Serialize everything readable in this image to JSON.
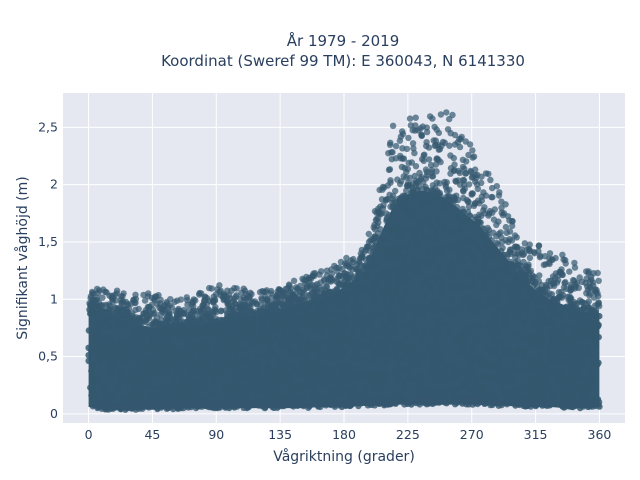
{
  "chart_data": {
    "type": "scatter",
    "title_line1": "År 1979 - 2019",
    "title_line2": "Koordinat (Sweref 99 TM): E 360043, N 6141330",
    "xlabel": "Vågriktning (grader)",
    "ylabel": "Signifikant våghöjd (m)",
    "xlim": [
      -18,
      378
    ],
    "ylim": [
      -0.08,
      2.8
    ],
    "xticks": [
      0,
      45,
      90,
      135,
      180,
      225,
      270,
      315,
      360
    ],
    "xtick_labels": [
      "0",
      "45",
      "90",
      "135",
      "180",
      "225",
      "270",
      "315",
      "360"
    ],
    "yticks": [
      0,
      0.5,
      1,
      1.5,
      2,
      2.5
    ],
    "ytick_labels": [
      "0",
      "0,5",
      "1",
      "1,5",
      "2",
      "2,5"
    ],
    "grid": true,
    "marker_color": "#34586f",
    "plot_background": "#e5e8f0",
    "envelope": {
      "x": [
        0,
        10,
        20,
        30,
        45,
        60,
        75,
        90,
        105,
        120,
        135,
        150,
        165,
        180,
        195,
        205,
        215,
        225,
        235,
        245,
        255,
        265,
        275,
        285,
        295,
        305,
        315,
        325,
        335,
        345,
        355,
        360
      ],
      "lower": [
        0.06,
        0.04,
        0.03,
        0.03,
        0.04,
        0.04,
        0.05,
        0.05,
        0.05,
        0.05,
        0.05,
        0.05,
        0.06,
        0.06,
        0.07,
        0.07,
        0.08,
        0.08,
        0.08,
        0.08,
        0.08,
        0.08,
        0.08,
        0.07,
        0.07,
        0.06,
        0.06,
        0.06,
        0.05,
        0.05,
        0.05,
        0.06
      ],
      "dense_upper": [
        0.95,
        0.88,
        0.85,
        0.8,
        0.75,
        0.8,
        0.8,
        0.8,
        0.85,
        0.87,
        0.92,
        0.97,
        1.02,
        1.1,
        1.25,
        1.55,
        1.82,
        1.92,
        1.95,
        1.92,
        1.85,
        1.75,
        1.65,
        1.5,
        1.35,
        1.2,
        1.08,
        1.0,
        0.95,
        0.9,
        0.88,
        0.88
      ],
      "max": [
        1.15,
        1.1,
        1.08,
        1.06,
        1.05,
        1.02,
        1.05,
        1.15,
        1.1,
        1.08,
        1.1,
        1.2,
        1.25,
        1.35,
        1.45,
        1.95,
        2.55,
        2.6,
        2.65,
        2.62,
        2.65,
        2.5,
        2.2,
        2.05,
        1.9,
        1.5,
        1.48,
        1.45,
        1.38,
        1.3,
        1.27,
        1.22
      ]
    }
  }
}
